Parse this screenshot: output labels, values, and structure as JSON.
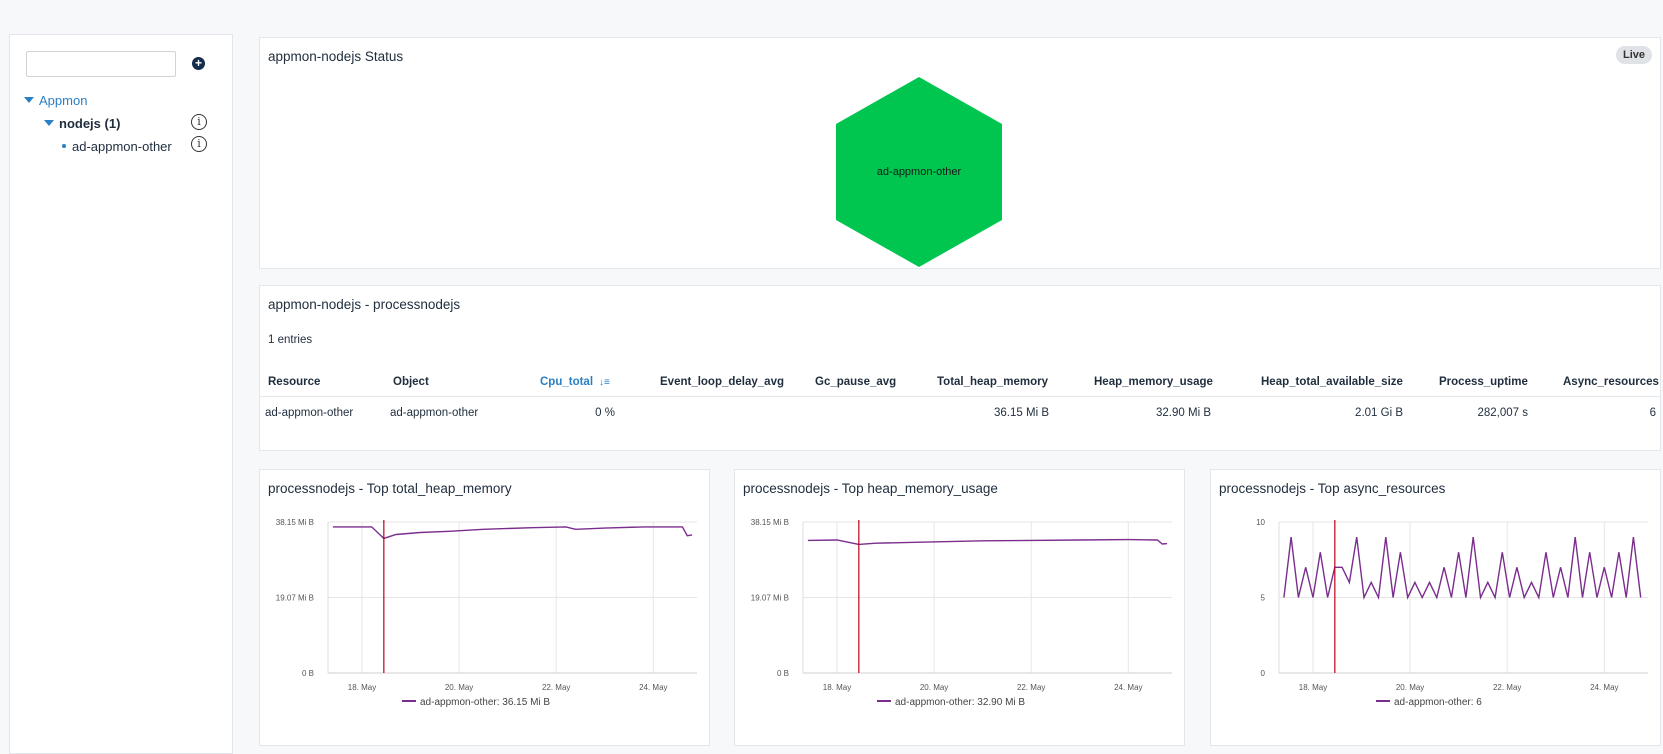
{
  "sidebar": {
    "search_placeholder": "",
    "tree": {
      "root_label": "Appmon",
      "group_label": "nodejs (1)",
      "leaf_label": "ad-appmon-other"
    }
  },
  "status_panel": {
    "title": "appmon-nodejs Status",
    "live_badge": "Live",
    "hex_label": "ad-appmon-other",
    "hex_color": "#00c650"
  },
  "table_panel": {
    "title": "appmon-nodejs - processnodejs",
    "entries": "1 entries",
    "columns": [
      "Resource",
      "Object",
      "Cpu_total",
      "Event_loop_delay_avg",
      "Gc_pause_avg",
      "Total_heap_memory",
      "Heap_memory_usage",
      "Heap_total_available_size",
      "Process_uptime",
      "Async_resources"
    ],
    "row": [
      "ad-appmon-other",
      "ad-appmon-other",
      "0 %",
      "",
      "",
      "36.15 Mi B",
      "32.90 Mi B",
      "2.01 Gi B",
      "282,007 s",
      "6"
    ]
  },
  "colors": {
    "series": "#7b2d8e",
    "marker": "#c0001a",
    "accent": "#2b7fc3"
  },
  "chart_data": [
    {
      "type": "line",
      "title": "processnodejs - Top total_heap_memory",
      "y_ticks": [
        "38.15 Mi B",
        "19.07 Mi B",
        "0 B"
      ],
      "x_ticks": [
        "18. May",
        "20. May",
        "22. May",
        "24. May"
      ],
      "ylim": [
        0,
        38.15
      ],
      "marker_day": 18.45,
      "series": [
        {
          "name": "ad-appmon-other: 36.15 Mi B",
          "x": [
            17.4,
            18.2,
            18.45,
            18.7,
            19.2,
            19.8,
            20.5,
            21.5,
            22.2,
            22.4,
            23.0,
            23.8,
            24.6,
            24.7,
            24.8
          ],
          "values": [
            36.9,
            36.9,
            34.0,
            35.0,
            35.5,
            35.8,
            36.3,
            36.7,
            36.9,
            36.3,
            36.6,
            36.9,
            36.9,
            34.7,
            34.9
          ]
        }
      ]
    },
    {
      "type": "line",
      "title": "processnodejs - Top heap_memory_usage",
      "y_ticks": [
        "38.15 Mi B",
        "19.07 Mi B",
        "0 B"
      ],
      "x_ticks": [
        "18. May",
        "20. May",
        "22. May",
        "24. May"
      ],
      "ylim": [
        0,
        38.15
      ],
      "marker_day": 18.45,
      "series": [
        {
          "name": "ad-appmon-other: 32.90 Mi B",
          "x": [
            17.4,
            18.0,
            18.45,
            18.8,
            19.5,
            20.3,
            21.0,
            22.0,
            23.0,
            24.0,
            24.6,
            24.7,
            24.8
          ],
          "values": [
            33.5,
            33.6,
            32.5,
            32.8,
            33.0,
            33.2,
            33.4,
            33.5,
            33.6,
            33.7,
            33.6,
            32.6,
            32.7
          ]
        }
      ]
    },
    {
      "type": "line",
      "title": "processnodejs - Top async_resources",
      "y_ticks": [
        "10",
        "5",
        "0"
      ],
      "x_ticks": [
        "18. May",
        "20. May",
        "22. May",
        "24. May"
      ],
      "ylim": [
        0,
        10
      ],
      "marker_day": 18.45,
      "series": [
        {
          "name": "ad-appmon-other: 6",
          "x": [
            17.4,
            17.55,
            17.7,
            17.85,
            18.0,
            18.15,
            18.3,
            18.45,
            18.6,
            18.75,
            18.9,
            19.05,
            19.2,
            19.35,
            19.5,
            19.65,
            19.8,
            19.95,
            20.1,
            20.25,
            20.4,
            20.55,
            20.7,
            20.85,
            21.0,
            21.15,
            21.3,
            21.45,
            21.6,
            21.75,
            21.9,
            22.05,
            22.2,
            22.35,
            22.5,
            22.65,
            22.8,
            22.95,
            23.1,
            23.25,
            23.4,
            23.55,
            23.7,
            23.85,
            24.0,
            24.15,
            24.3,
            24.45,
            24.6,
            24.75
          ],
          "values": [
            5,
            9,
            5,
            7,
            5,
            8,
            5,
            7,
            7,
            6,
            9,
            5,
            6,
            5,
            9,
            5,
            8,
            5,
            6,
            5,
            6,
            5,
            7,
            5,
            8,
            5,
            9,
            5,
            6,
            5,
            8,
            5,
            7,
            5,
            6,
            5,
            8,
            5,
            7,
            5,
            9,
            5,
            8,
            5,
            7,
            5,
            8,
            5,
            9,
            5
          ]
        }
      ]
    }
  ]
}
